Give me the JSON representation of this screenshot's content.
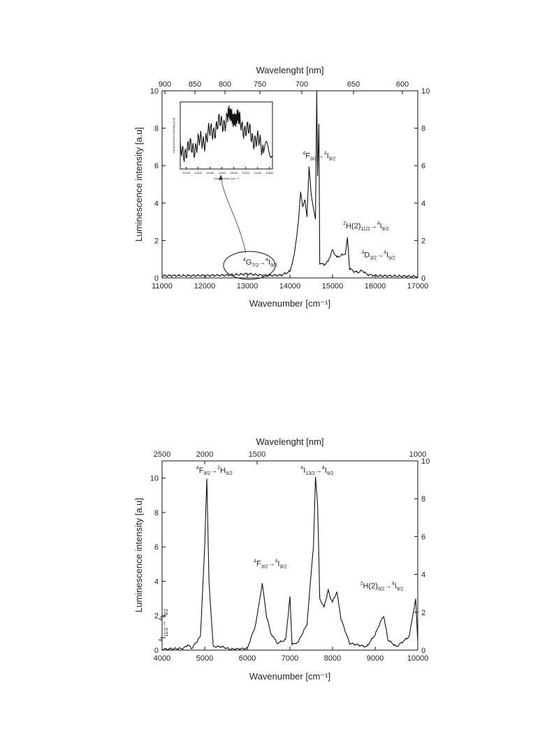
{
  "chart_data": [
    {
      "type": "line",
      "xlabel": "Wavenumber [cm⁻¹]",
      "ylabel": "Luminescence intensity [a.u]",
      "top_axis_label": "Wavelenght [nm]",
      "xlim": [
        11000,
        17000
      ],
      "ylim": [
        0,
        10
      ],
      "right_ylim": [
        0,
        10
      ],
      "grid": false,
      "xticks": [
        "11000",
        "12000",
        "13000",
        "14000",
        "15000",
        "16000",
        "17000"
      ],
      "yticks": [
        "0",
        "2",
        "4",
        "6",
        "8",
        "10"
      ],
      "right_yticks": [
        "0",
        "2",
        "4",
        "6",
        "8",
        "10"
      ],
      "top_ticks": [
        "900",
        "850",
        "800",
        "750",
        "700",
        "650",
        "600"
      ],
      "x": [
        11000,
        11500,
        12000,
        12500,
        12800,
        13000,
        13200,
        13500,
        13800,
        14000,
        14100,
        14200,
        14250,
        14300,
        14350,
        14400,
        14450,
        14500,
        14550,
        14600,
        14630,
        14650,
        14680,
        14700,
        14800,
        14900,
        15000,
        15100,
        15200,
        15300,
        15350,
        15400,
        15500,
        15600,
        15700,
        15800,
        16000,
        16500,
        17000
      ],
      "y": [
        0.12,
        0.12,
        0.13,
        0.15,
        0.18,
        0.22,
        0.17,
        0.13,
        0.15,
        0.35,
        1.2,
        3.0,
        4.6,
        3.8,
        4.2,
        3.3,
        6.0,
        4.5,
        3.8,
        3.2,
        10.0,
        5.5,
        8.2,
        0.8,
        0.7,
        0.9,
        1.5,
        1.1,
        1.2,
        1.3,
        2.2,
        0.5,
        0.35,
        0.3,
        0.4,
        0.2,
        0.12,
        0.1,
        0.08
      ],
      "annotations": [
        {
          "upper": "4",
          "main": "F",
          "sub": "9/2",
          "arrow": "→",
          "upper2": "4",
          "main2": "I",
          "sub2": "9/2",
          "x": 14300,
          "y": 6.4
        },
        {
          "upper": "2",
          "main": "H(2)",
          "sub": "11/2",
          "arrow": "→",
          "upper2": "4",
          "main2": "I",
          "sub2": "9/2",
          "x": 15250,
          "y": 2.65
        },
        {
          "upper": "4",
          "main": "D",
          "sub": "3/2",
          "arrow": "→",
          "upper2": "4",
          "main2": "I",
          "sub2": "9/2",
          "x": 15680,
          "y": 1.1
        },
        {
          "upper": "4",
          "main": "G",
          "sub": "7/2",
          "arrow": "→",
          "upper2": "4",
          "main2": "I",
          "sub2": "9/2",
          "x": 12900,
          "y": 0.7
        }
      ],
      "inset": {
        "xlabel": "Wavenumber [cm⁻¹]",
        "ylabel": "Luminescence intensity [a.u]",
        "xticks": [
          "12200",
          "12400",
          "12600",
          "12800",
          "13000",
          "13200",
          "13400",
          "13600"
        ],
        "x": [
          12100,
          12300,
          12500,
          12700,
          12900,
          13000,
          13100,
          13300,
          13500,
          13650
        ],
        "y": [
          0.14,
          0.15,
          0.17,
          0.2,
          0.22,
          0.23,
          0.21,
          0.18,
          0.15,
          0.14
        ]
      }
    },
    {
      "type": "line",
      "xlabel": "Wavenumber [cm⁻¹]",
      "ylabel": "Luminescence intensity [a.u]",
      "top_axis_label": "Wavelenght [nm]",
      "xlim": [
        4000,
        10000
      ],
      "ylim": [
        0,
        11
      ],
      "right_ylim": [
        0,
        10
      ],
      "grid": false,
      "xticks": [
        "4000",
        "5000",
        "6000",
        "7000",
        "8000",
        "9000",
        "10000"
      ],
      "yticks": [
        "0",
        "2",
        "4",
        "6",
        "8",
        "10"
      ],
      "right_yticks": [
        "0",
        "2",
        "4",
        "6",
        "8",
        "10"
      ],
      "top_ticks": [
        "2500",
        "2000",
        "1500",
        "1000"
      ],
      "x": [
        4000,
        4500,
        4600,
        4700,
        4900,
        5000,
        5050,
        5100,
        5200,
        5400,
        5600,
        6000,
        6200,
        6350,
        6400,
        6450,
        6550,
        6700,
        6900,
        7000,
        7050,
        7200,
        7400,
        7550,
        7600,
        7650,
        7700,
        7800,
        7900,
        7950,
        8000,
        8100,
        8200,
        8400,
        8800,
        9000,
        9100,
        9200,
        9300,
        9500,
        9800,
        9950,
        10000
      ],
      "y": [
        0.05,
        0.1,
        0.3,
        0.1,
        0.8,
        6.0,
        9.9,
        4.0,
        0.2,
        0.2,
        0.05,
        0.1,
        1.5,
        3.9,
        3.0,
        2.0,
        1.0,
        0.4,
        0.6,
        3.1,
        0.3,
        0.5,
        1.5,
        6.0,
        10.1,
        8.5,
        3.0,
        2.5,
        3.5,
        3.0,
        2.8,
        3.4,
        1.8,
        0.4,
        0.2,
        0.9,
        1.5,
        2.0,
        0.6,
        0.2,
        0.8,
        3.0,
        0.5
      ],
      "annotations": [
        {
          "upper": "4",
          "main": "F",
          "sub": "9/2",
          "arrow": "→",
          "upper2": "2",
          "main2": "H",
          "sub2": "9/2",
          "x": 4800,
          "y": 10.3
        },
        {
          "upper": "4",
          "main": "I",
          "sub": "13/2",
          "arrow": "→",
          "upper2": "4",
          "main2": "I",
          "sub2": "9/2",
          "x": 7250,
          "y": 10.3
        },
        {
          "upper": "4",
          "main": "F",
          "sub": "3/2",
          "arrow": "→",
          "upper2": "4",
          "main2": "I",
          "sub2": "9/2",
          "x": 6150,
          "y": 4.9
        },
        {
          "upper": "2",
          "main": "H(2)",
          "sub": "9/2",
          "arrow": "→",
          "upper2": "4",
          "main2": "I",
          "sub2": "9/2",
          "x": 8650,
          "y": 3.6
        },
        {
          "upper": "4",
          "main": "I",
          "sub": "11/2",
          "arrow": "→",
          "upper2": "4",
          "main2": "I",
          "sub2": "9/2",
          "x": 4080,
          "y": 0.5,
          "vertical": true
        }
      ]
    }
  ]
}
